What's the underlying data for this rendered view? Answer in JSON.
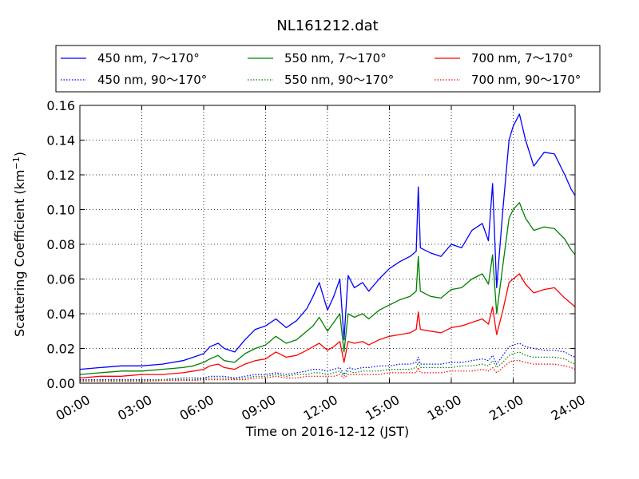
{
  "chart_data": {
    "type": "line",
    "title": "NL161212.dat",
    "xlabel": "Time on 2016-12-12 (JST)",
    "ylabel": "Scattering Coefficient (km",
    "ylabel_sup": "−1",
    "ylabel_end": ")",
    "xlim": [
      0,
      24
    ],
    "ylim": [
      0,
      0.16
    ],
    "x_ticks": [
      {
        "value": 0,
        "label": "00:00"
      },
      {
        "value": 3,
        "label": "03:00"
      },
      {
        "value": 6,
        "label": "06:00"
      },
      {
        "value": 9,
        "label": "09:00"
      },
      {
        "value": 12,
        "label": "12:00"
      },
      {
        "value": 15,
        "label": "15:00"
      },
      {
        "value": 18,
        "label": "18:00"
      },
      {
        "value": 21,
        "label": "21:00"
      },
      {
        "value": 24,
        "label": "24:00"
      }
    ],
    "y_ticks": [
      {
        "value": 0.0,
        "label": "0.00"
      },
      {
        "value": 0.02,
        "label": "0.02"
      },
      {
        "value": 0.04,
        "label": "0.04"
      },
      {
        "value": 0.06,
        "label": "0.06"
      },
      {
        "value": 0.08,
        "label": "0.08"
      },
      {
        "value": 0.1,
        "label": "0.10"
      },
      {
        "value": 0.12,
        "label": "0.12"
      },
      {
        "value": 0.14,
        "label": "0.14"
      },
      {
        "value": 0.16,
        "label": "0.16"
      }
    ],
    "grid": true,
    "legend_position": "top",
    "x_hours": [
      0,
      1,
      2,
      3,
      4,
      5,
      5.5,
      6,
      6.3,
      6.7,
      7,
      7.5,
      8,
      8.5,
      9,
      9.5,
      10,
      10.5,
      11,
      11.3,
      11.6,
      12,
      12.3,
      12.6,
      12.8,
      13,
      13.3,
      13.7,
      14,
      14.5,
      15,
      15.5,
      16,
      16.3,
      16.4,
      16.5,
      17,
      17.5,
      18,
      18.5,
      19,
      19.5,
      19.8,
      20,
      20.2,
      20.5,
      20.8,
      21,
      21.3,
      21.6,
      22,
      22.5,
      23,
      23.5,
      23.8,
      24
    ],
    "series": [
      {
        "name": "450 nm, 7～170°",
        "color": "#0000ff",
        "style": "solid",
        "values": [
          0.008,
          0.009,
          0.01,
          0.01,
          0.011,
          0.013,
          0.015,
          0.017,
          0.021,
          0.023,
          0.02,
          0.018,
          0.025,
          0.031,
          0.033,
          0.037,
          0.032,
          0.036,
          0.043,
          0.05,
          0.058,
          0.042,
          0.05,
          0.06,
          0.025,
          0.062,
          0.055,
          0.058,
          0.053,
          0.06,
          0.066,
          0.07,
          0.073,
          0.076,
          0.113,
          0.078,
          0.075,
          0.073,
          0.08,
          0.078,
          0.088,
          0.092,
          0.082,
          0.115,
          0.055,
          0.1,
          0.14,
          0.148,
          0.155,
          0.14,
          0.125,
          0.133,
          0.132,
          0.12,
          0.112,
          0.108
        ]
      },
      {
        "name": "550 nm, 7～170°",
        "color": "#008000",
        "style": "solid",
        "values": [
          0.005,
          0.006,
          0.007,
          0.007,
          0.008,
          0.009,
          0.01,
          0.012,
          0.014,
          0.016,
          0.013,
          0.012,
          0.017,
          0.02,
          0.022,
          0.027,
          0.023,
          0.025,
          0.03,
          0.033,
          0.038,
          0.03,
          0.035,
          0.04,
          0.018,
          0.04,
          0.038,
          0.04,
          0.037,
          0.042,
          0.045,
          0.048,
          0.05,
          0.053,
          0.073,
          0.053,
          0.05,
          0.049,
          0.054,
          0.055,
          0.06,
          0.063,
          0.057,
          0.074,
          0.04,
          0.068,
          0.095,
          0.1,
          0.104,
          0.095,
          0.088,
          0.09,
          0.089,
          0.083,
          0.077,
          0.074
        ]
      },
      {
        "name": "700 nm, 7～170°",
        "color": "#ff0000",
        "style": "solid",
        "values": [
          0.003,
          0.004,
          0.004,
          0.005,
          0.005,
          0.006,
          0.007,
          0.008,
          0.01,
          0.011,
          0.009,
          0.008,
          0.011,
          0.013,
          0.014,
          0.018,
          0.015,
          0.016,
          0.019,
          0.021,
          0.023,
          0.019,
          0.021,
          0.024,
          0.012,
          0.024,
          0.023,
          0.024,
          0.022,
          0.025,
          0.027,
          0.028,
          0.029,
          0.031,
          0.041,
          0.031,
          0.03,
          0.029,
          0.032,
          0.033,
          0.035,
          0.037,
          0.034,
          0.044,
          0.028,
          0.042,
          0.058,
          0.06,
          0.063,
          0.057,
          0.052,
          0.054,
          0.055,
          0.049,
          0.046,
          0.044
        ]
      },
      {
        "name": "450 nm, 90～170°",
        "color": "#0000ff",
        "style": "dotted",
        "values": [
          0.002,
          0.002,
          0.002,
          0.002,
          0.002,
          0.003,
          0.003,
          0.003,
          0.004,
          0.004,
          0.004,
          0.003,
          0.004,
          0.005,
          0.005,
          0.006,
          0.005,
          0.006,
          0.007,
          0.008,
          0.008,
          0.007,
          0.008,
          0.009,
          0.005,
          0.009,
          0.008,
          0.009,
          0.009,
          0.01,
          0.01,
          0.011,
          0.011,
          0.012,
          0.015,
          0.011,
          0.011,
          0.011,
          0.012,
          0.012,
          0.013,
          0.014,
          0.013,
          0.016,
          0.011,
          0.016,
          0.021,
          0.022,
          0.023,
          0.021,
          0.02,
          0.019,
          0.019,
          0.018,
          0.016,
          0.015
        ]
      },
      {
        "name": "550 nm, 90～170°",
        "color": "#008000",
        "style": "dotted",
        "values": [
          0.0015,
          0.0015,
          0.0015,
          0.0015,
          0.002,
          0.002,
          0.002,
          0.0025,
          0.003,
          0.003,
          0.003,
          0.0025,
          0.003,
          0.004,
          0.004,
          0.005,
          0.004,
          0.005,
          0.005,
          0.006,
          0.006,
          0.005,
          0.006,
          0.007,
          0.004,
          0.007,
          0.006,
          0.007,
          0.007,
          0.007,
          0.008,
          0.008,
          0.008,
          0.009,
          0.012,
          0.009,
          0.009,
          0.009,
          0.009,
          0.01,
          0.01,
          0.011,
          0.01,
          0.013,
          0.009,
          0.012,
          0.016,
          0.017,
          0.018,
          0.016,
          0.015,
          0.015,
          0.015,
          0.014,
          0.012,
          0.011
        ]
      },
      {
        "name": "700 nm, 90～170°",
        "color": "#ff0000",
        "style": "dotted",
        "values": [
          0.001,
          0.001,
          0.001,
          0.001,
          0.0015,
          0.0015,
          0.0015,
          0.002,
          0.002,
          0.002,
          0.002,
          0.002,
          0.002,
          0.003,
          0.003,
          0.004,
          0.003,
          0.003,
          0.004,
          0.004,
          0.004,
          0.004,
          0.004,
          0.005,
          0.003,
          0.005,
          0.005,
          0.005,
          0.005,
          0.005,
          0.006,
          0.006,
          0.006,
          0.006,
          0.009,
          0.006,
          0.006,
          0.006,
          0.007,
          0.007,
          0.007,
          0.008,
          0.007,
          0.009,
          0.006,
          0.009,
          0.012,
          0.013,
          0.013,
          0.012,
          0.011,
          0.011,
          0.011,
          0.01,
          0.009,
          0.008
        ]
      }
    ]
  }
}
